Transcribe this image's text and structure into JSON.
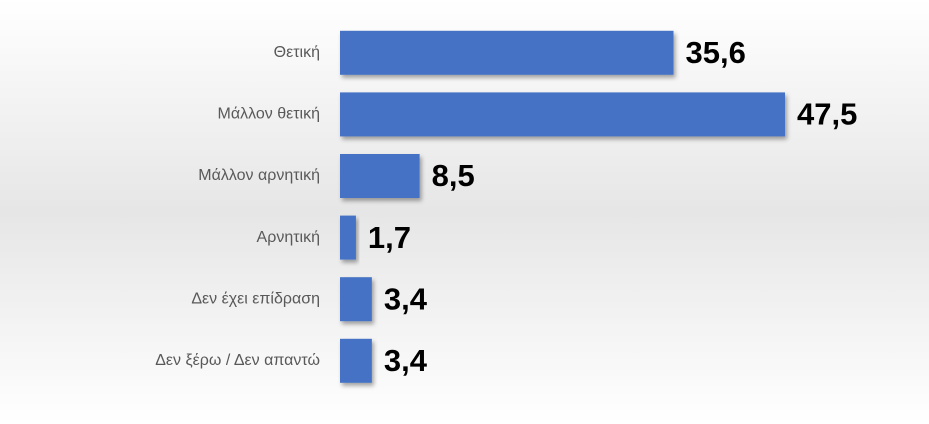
{
  "chart_data": {
    "type": "bar",
    "orientation": "horizontal",
    "categories": [
      "Θετική",
      "Μάλλον θετική",
      "Μάλλον αρνητική",
      "Αρνητική",
      "Δεν έχει επίδραση",
      "Δεν ξέρω / Δεν απαντώ"
    ],
    "values": [
      35.6,
      47.5,
      8.5,
      1.7,
      3.4,
      3.4
    ],
    "value_labels": [
      "35,6",
      "47,5",
      "8,5",
      "1,7",
      "3,4",
      "3,4"
    ],
    "color": "#4472c4"
  }
}
